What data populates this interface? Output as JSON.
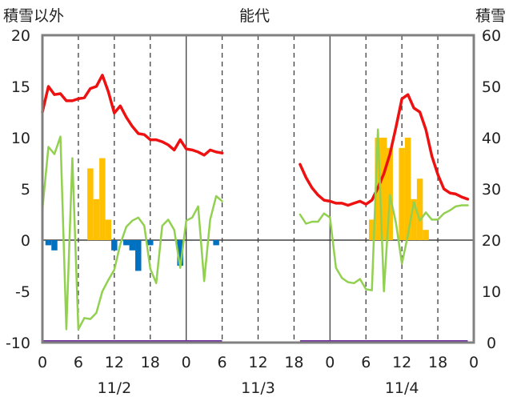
{
  "chart_data": {
    "type": "bar+line",
    "title": "能代",
    "ylabel_left": "積雪以外",
    "ylabel_right": "積雪",
    "x_range_hours": [
      0,
      72
    ],
    "ylim_left": [
      -10,
      20
    ],
    "ylim_right": [
      0,
      60
    ],
    "yticks_left": [
      "20",
      "15",
      "10",
      "5",
      "0",
      "-5",
      "-10"
    ],
    "yticks_right": [
      "60",
      "50",
      "40",
      "30",
      "20",
      "10",
      "0"
    ],
    "xticks": [
      "0",
      "6",
      "12",
      "18",
      "0",
      "6",
      "12",
      "18",
      "0",
      "6",
      "12",
      "18",
      "0"
    ],
    "date_labels": [
      {
        "label": "11/2",
        "hour": 12
      },
      {
        "label": "11/3",
        "hour": 36
      },
      {
        "label": "11/4",
        "hour": 60
      }
    ],
    "colors": {
      "temperature": "#ee1111",
      "wind": "#92d050",
      "precip": "#ffc000",
      "sunshine": "#0070c0",
      "snow_depth": "#7030a0",
      "grid": "#404040",
      "frame": "#808080"
    },
    "series": [
      {
        "key": "temperature",
        "axis": "left",
        "points": [
          [
            0,
            12.5
          ],
          [
            1,
            15
          ],
          [
            2,
            14.2
          ],
          [
            3,
            14.3
          ],
          [
            4,
            13.6
          ],
          [
            5,
            13.6
          ],
          [
            6,
            13.8
          ],
          [
            7,
            13.9
          ],
          [
            8,
            14.8
          ],
          [
            9,
            15
          ],
          [
            10,
            16.1
          ],
          [
            11,
            14.5
          ],
          [
            12,
            12.4
          ],
          [
            13,
            13.1
          ],
          [
            14,
            12
          ],
          [
            15,
            11.1
          ],
          [
            16,
            10.4
          ],
          [
            17,
            10.3
          ],
          [
            18,
            9.8
          ],
          [
            19,
            9.8
          ],
          [
            20,
            9.6
          ],
          [
            21,
            9.3
          ],
          [
            22,
            8.8
          ],
          [
            23,
            9.8
          ],
          [
            24,
            8.9
          ],
          [
            25,
            8.8
          ],
          [
            26,
            8.6
          ],
          [
            27,
            8.3
          ],
          [
            28,
            8.8
          ],
          [
            29,
            8.6
          ],
          [
            30,
            8.5
          ],
          [
            43,
            7.4
          ],
          [
            44,
            6.1
          ],
          [
            45,
            5.1
          ],
          [
            46,
            4.4
          ],
          [
            47,
            3.9
          ],
          [
            48,
            3.8
          ],
          [
            49,
            3.6
          ],
          [
            50,
            3.6
          ],
          [
            51,
            3.4
          ],
          [
            52,
            3.6
          ],
          [
            53,
            3.8
          ],
          [
            54,
            3.5
          ],
          [
            55,
            3.9
          ],
          [
            56,
            5.1
          ],
          [
            57,
            6.5
          ],
          [
            58,
            8.4
          ],
          [
            59,
            11
          ],
          [
            60,
            13.8
          ],
          [
            61,
            14.2
          ],
          [
            62,
            12.9
          ],
          [
            63,
            12.5
          ],
          [
            64,
            10.8
          ],
          [
            65,
            8.2
          ],
          [
            66,
            6.4
          ],
          [
            67,
            5
          ],
          [
            68,
            4.6
          ],
          [
            69,
            4.5
          ],
          [
            70,
            4.2
          ],
          [
            71,
            4
          ]
        ]
      },
      {
        "key": "wind",
        "axis": "left",
        "points": [
          [
            0,
            3
          ],
          [
            1,
            9.1
          ],
          [
            2,
            8.4
          ],
          [
            3,
            10.1
          ],
          [
            4,
            -8.7
          ],
          [
            5,
            8
          ],
          [
            6,
            -8.7
          ],
          [
            7,
            -7.6
          ],
          [
            8,
            -7.7
          ],
          [
            9,
            -7.1
          ],
          [
            10,
            -5
          ],
          [
            11,
            -3.9
          ],
          [
            12,
            -2.9
          ],
          [
            13,
            -0.4
          ],
          [
            14,
            1.3
          ],
          [
            15,
            1.9
          ],
          [
            16,
            2.2
          ],
          [
            17,
            1.4
          ],
          [
            18,
            -2.8
          ],
          [
            19,
            -4.2
          ],
          [
            20,
            1.4
          ],
          [
            21,
            2
          ],
          [
            22,
            1
          ],
          [
            23,
            -2.7
          ],
          [
            24,
            1.9
          ],
          [
            25,
            2.2
          ],
          [
            26,
            3.3
          ],
          [
            27,
            -4
          ],
          [
            28,
            2
          ],
          [
            29,
            4.3
          ],
          [
            30,
            3.8
          ],
          [
            43,
            2.5
          ],
          [
            44,
            1.6
          ],
          [
            45,
            1.8
          ],
          [
            46,
            1.8
          ],
          [
            47,
            2.6
          ],
          [
            48,
            2.2
          ],
          [
            49,
            -2.7
          ],
          [
            50,
            -3.7
          ],
          [
            51,
            -4.1
          ],
          [
            52,
            -4.2
          ],
          [
            53,
            -3.8
          ],
          [
            54,
            -4.8
          ],
          [
            55,
            -4.9
          ],
          [
            56,
            10.8
          ],
          [
            57,
            -5
          ],
          [
            58,
            4.4
          ],
          [
            59,
            1.7
          ],
          [
            60,
            -2.3
          ],
          [
            61,
            0.5
          ],
          [
            62,
            3.7
          ],
          [
            63,
            1.9
          ],
          [
            64,
            2.7
          ],
          [
            65,
            2
          ],
          [
            66,
            2
          ],
          [
            67,
            2.6
          ],
          [
            68,
            2.9
          ],
          [
            69,
            3.3
          ],
          [
            70,
            3.4
          ],
          [
            71,
            3.4
          ]
        ]
      },
      {
        "key": "precip",
        "axis": "left",
        "bars": [
          [
            8,
            7
          ],
          [
            9,
            4
          ],
          [
            10,
            8
          ],
          [
            11,
            2
          ],
          [
            55,
            2
          ],
          [
            56,
            10
          ],
          [
            57,
            10
          ],
          [
            58,
            9
          ],
          [
            60,
            9
          ],
          [
            61,
            10
          ],
          [
            62,
            4
          ],
          [
            63,
            6
          ],
          [
            64,
            1
          ]
        ]
      },
      {
        "key": "sunshine",
        "axis": "left",
        "bars": [
          [
            1,
            -0.5
          ],
          [
            2,
            -1
          ],
          [
            12,
            -1
          ],
          [
            14,
            -0.5
          ],
          [
            15,
            -1
          ],
          [
            16,
            -3
          ],
          [
            18,
            -0.5
          ],
          [
            23,
            -2.5
          ],
          [
            29,
            -0.5
          ]
        ]
      },
      {
        "key": "snow_depth",
        "axis": "right",
        "segments": [
          [
            [
              0,
              0
            ],
            [
              30,
              0
            ]
          ],
          [
            [
              43,
              0
            ],
            [
              71,
              0
            ]
          ]
        ]
      }
    ]
  }
}
